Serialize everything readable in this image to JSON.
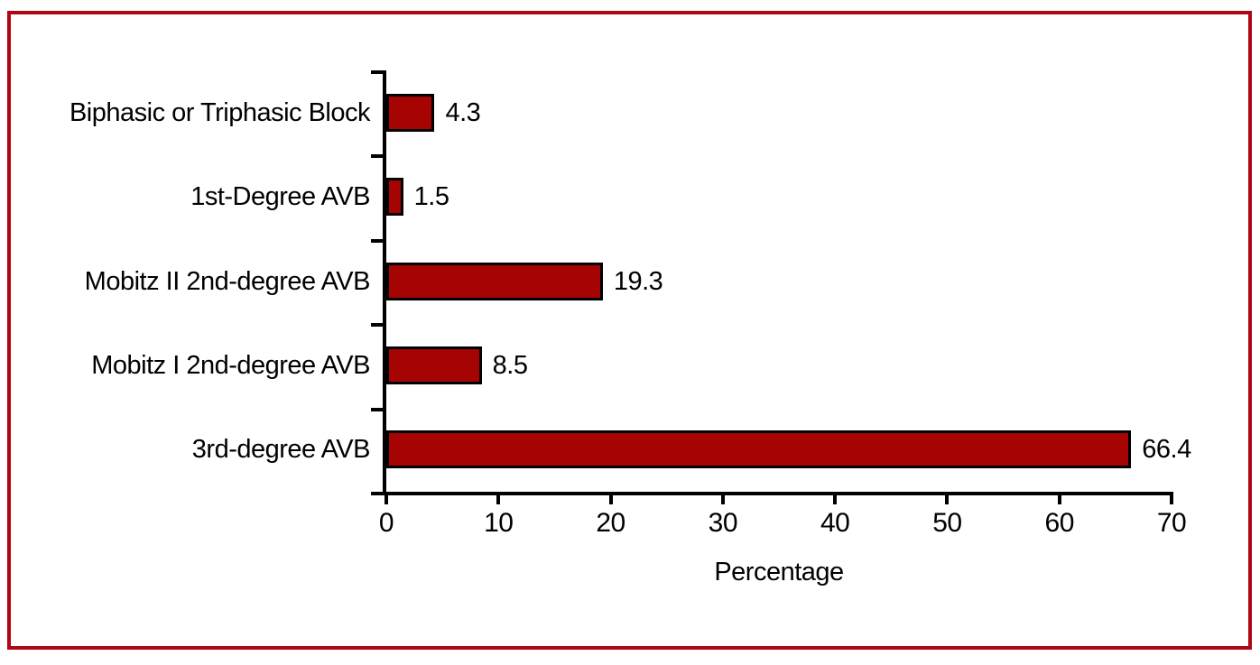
{
  "chart_data": {
    "type": "bar",
    "orientation": "horizontal",
    "title": "",
    "xlabel": "Percentage",
    "ylabel": "",
    "xlim": [
      0,
      70
    ],
    "x_ticks": [
      0,
      10,
      20,
      30,
      40,
      50,
      60,
      70
    ],
    "grid": false,
    "legend": false,
    "categories": [
      "Biphasic or Triphasic Block",
      "1st-Degree AVB",
      "Mobitz II 2nd-degree AVB",
      "Mobitz I 2nd-degree AVB",
      "3rd-degree AVB"
    ],
    "values": [
      4.3,
      1.5,
      19.3,
      8.5,
      66.4
    ],
    "value_labels": [
      "4.3",
      "1.5",
      "19.3",
      "8.5",
      "66.4"
    ],
    "colors": {
      "bar_fill": "#A60303",
      "bar_outline": "#000000",
      "axis": "#000000",
      "text": "#000000",
      "frame_border": "#B00714",
      "background": "#FFFFFF"
    }
  }
}
